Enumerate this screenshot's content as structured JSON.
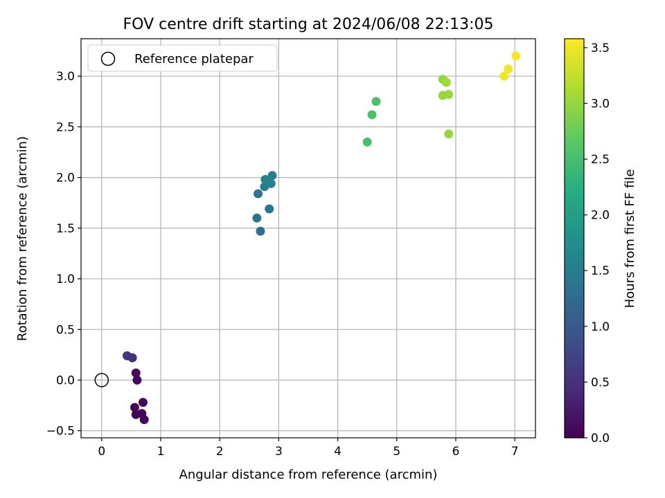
{
  "chart_data": {
    "type": "scatter",
    "title": "FOV centre drift starting at 2024/06/08 22:13:05",
    "xlabel": "Angular distance from reference (arcmin)",
    "ylabel": "Rotation from reference (arcmin)",
    "xlim": [
      -0.35,
      7.35
    ],
    "ylim": [
      -0.57,
      3.37
    ],
    "xticks": [
      0,
      1,
      2,
      3,
      4,
      5,
      6,
      7
    ],
    "xtick_labels": [
      "0",
      "1",
      "2",
      "3",
      "4",
      "5",
      "6",
      "7"
    ],
    "yticks": [
      -0.5,
      0.0,
      0.5,
      1.0,
      1.5,
      2.0,
      2.5,
      3.0
    ],
    "ytick_labels": [
      "−0.5",
      "0.0",
      "0.5",
      "1.0",
      "1.5",
      "2.0",
      "2.5",
      "3.0"
    ],
    "grid": true,
    "legend": {
      "position": "upper-left",
      "entries": [
        "Reference platepar"
      ]
    },
    "reference_point": {
      "x": 0,
      "y": 0
    },
    "colorbar": {
      "label": "Hours from first FF file",
      "colormap": "viridis",
      "range": [
        0.0,
        3.58
      ],
      "ticks": [
        0.0,
        0.5,
        1.0,
        1.5,
        2.0,
        2.5,
        3.0,
        3.5
      ],
      "tick_labels": [
        "0.0",
        "0.5",
        "1.0",
        "1.5",
        "2.0",
        "2.5",
        "3.0",
        "3.5"
      ]
    },
    "points": [
      {
        "x": 0.58,
        "y": 0.07,
        "hours": 0.1
      },
      {
        "x": 0.6,
        "y": 0.0,
        "hours": 0.08
      },
      {
        "x": 0.56,
        "y": -0.27,
        "hours": 0.05
      },
      {
        "x": 0.58,
        "y": -0.34,
        "hours": 0.03
      },
      {
        "x": 0.68,
        "y": -0.33,
        "hours": 0.0
      },
      {
        "x": 0.72,
        "y": -0.39,
        "hours": 0.02
      },
      {
        "x": 0.7,
        "y": -0.22,
        "hours": 0.06
      },
      {
        "x": 0.43,
        "y": 0.24,
        "hours": 0.55
      },
      {
        "x": 0.52,
        "y": 0.22,
        "hours": 0.5
      },
      {
        "x": 2.63,
        "y": 1.6,
        "hours": 1.35
      },
      {
        "x": 2.69,
        "y": 1.47,
        "hours": 1.3
      },
      {
        "x": 2.65,
        "y": 1.84,
        "hours": 1.4
      },
      {
        "x": 2.76,
        "y": 1.91,
        "hours": 1.5
      },
      {
        "x": 2.77,
        "y": 1.98,
        "hours": 1.55
      },
      {
        "x": 2.83,
        "y": 1.97,
        "hours": 1.6
      },
      {
        "x": 2.87,
        "y": 1.94,
        "hours": 1.58
      },
      {
        "x": 2.89,
        "y": 2.02,
        "hours": 1.55
      },
      {
        "x": 2.84,
        "y": 1.69,
        "hours": 1.45
      },
      {
        "x": 4.5,
        "y": 2.35,
        "hours": 2.5
      },
      {
        "x": 4.58,
        "y": 2.62,
        "hours": 2.55
      },
      {
        "x": 4.65,
        "y": 2.75,
        "hours": 2.55
      },
      {
        "x": 5.78,
        "y": 2.97,
        "hours": 3.0
      },
      {
        "x": 5.84,
        "y": 2.94,
        "hours": 3.05
      },
      {
        "x": 5.78,
        "y": 2.81,
        "hours": 3.0
      },
      {
        "x": 5.88,
        "y": 2.82,
        "hours": 3.02
      },
      {
        "x": 5.88,
        "y": 2.43,
        "hours": 3.0
      },
      {
        "x": 6.82,
        "y": 3.0,
        "hours": 3.5
      },
      {
        "x": 6.89,
        "y": 3.07,
        "hours": 3.52
      },
      {
        "x": 7.02,
        "y": 3.2,
        "hours": 3.58
      }
    ]
  }
}
